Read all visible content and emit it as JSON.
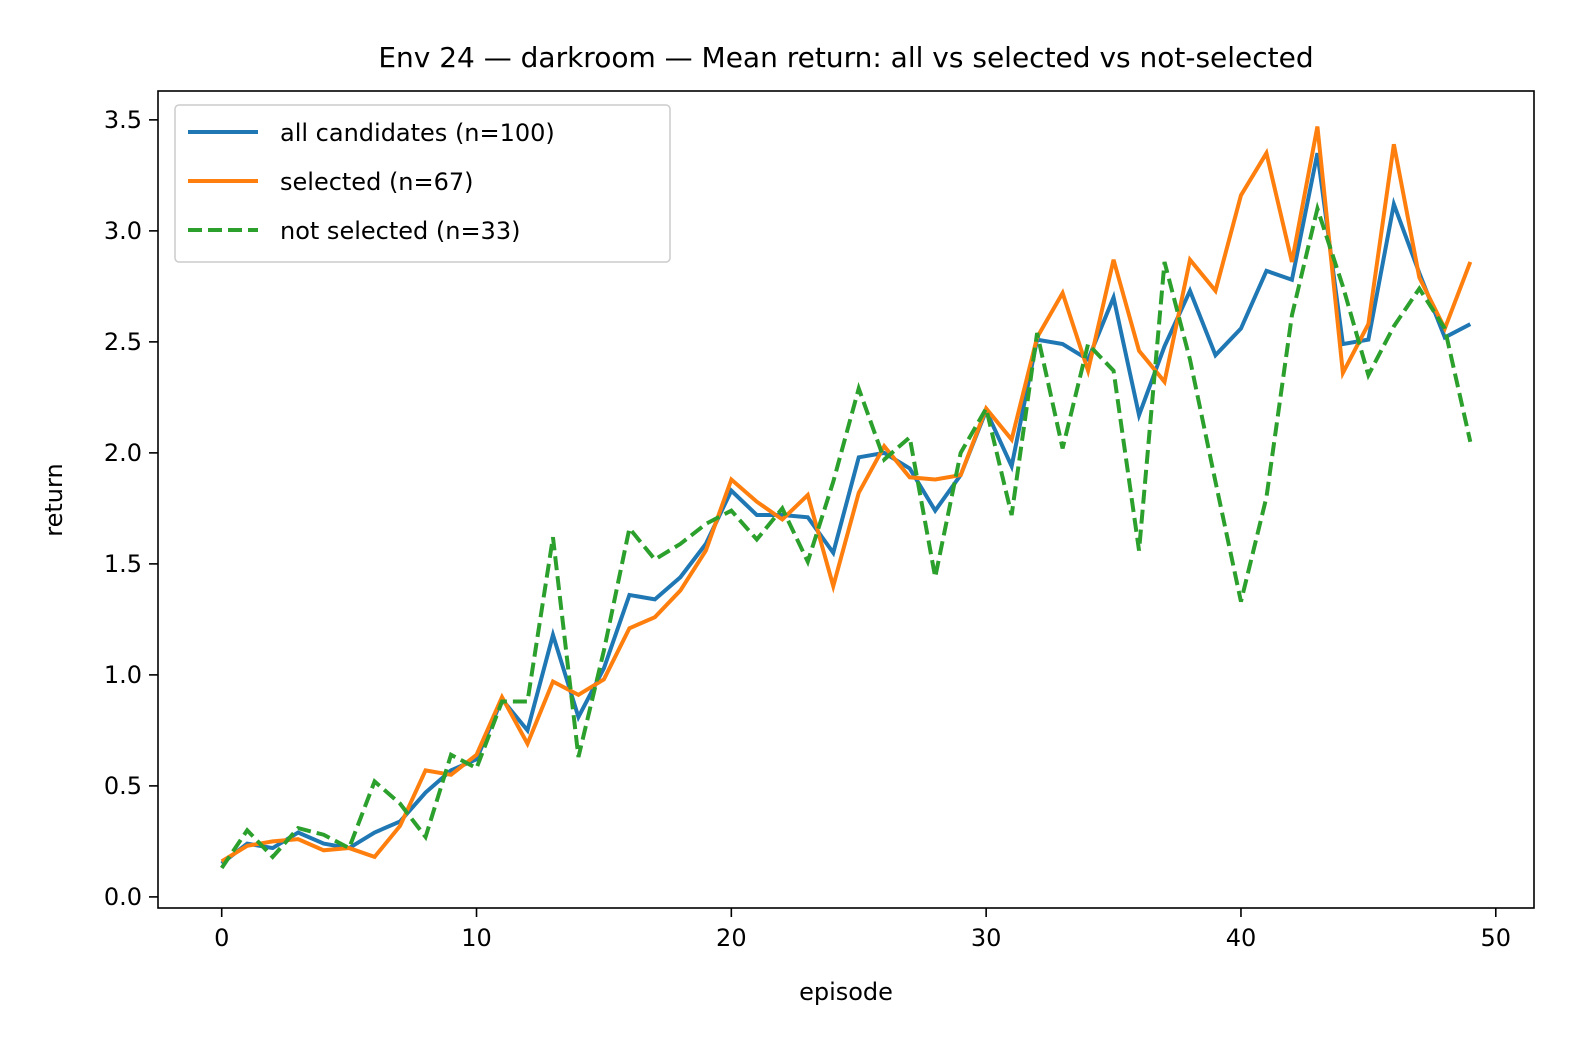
{
  "chart_data": {
    "type": "line",
    "title": "Env 24 — darkroom — Mean return: all vs selected vs not-selected",
    "xlabel": "episode",
    "ylabel": "return",
    "xlim": [
      -2.5,
      51.5
    ],
    "ylim": [
      -0.05,
      3.63
    ],
    "xticks": [
      0,
      10,
      20,
      30,
      40,
      50
    ],
    "xtick_labels": [
      "0",
      "10",
      "20",
      "30",
      "40",
      "50"
    ],
    "yticks": [
      0.0,
      0.5,
      1.0,
      1.5,
      2.0,
      2.5,
      3.0,
      3.5
    ],
    "ytick_labels": [
      "0.0",
      "0.5",
      "1.0",
      "1.5",
      "2.0",
      "2.5",
      "3.0",
      "3.5"
    ],
    "grid": false,
    "legend_position": "top-left",
    "x": [
      0,
      1,
      2,
      3,
      4,
      5,
      6,
      7,
      8,
      9,
      10,
      11,
      12,
      13,
      14,
      15,
      16,
      17,
      18,
      19,
      20,
      21,
      22,
      23,
      24,
      25,
      26,
      27,
      28,
      29,
      30,
      31,
      32,
      33,
      34,
      35,
      36,
      37,
      38,
      39,
      40,
      41,
      42,
      43,
      44,
      45,
      46,
      47,
      48,
      49
    ],
    "series": [
      {
        "name": "all candidates (n=100)",
        "color": "#1f77b4",
        "dash": "solid",
        "values": [
          0.15,
          0.24,
          0.22,
          0.29,
          0.24,
          0.22,
          0.29,
          0.34,
          0.47,
          0.57,
          0.62,
          0.89,
          0.75,
          1.18,
          0.81,
          1.03,
          1.36,
          1.34,
          1.44,
          1.59,
          1.83,
          1.72,
          1.72,
          1.71,
          1.55,
          1.98,
          2.0,
          1.93,
          1.74,
          1.9,
          2.19,
          1.94,
          2.51,
          2.49,
          2.42,
          2.7,
          2.17,
          2.48,
          2.73,
          2.44,
          2.56,
          2.82,
          2.78,
          3.35,
          2.49,
          2.51,
          3.12,
          2.81,
          2.52,
          2.58
        ]
      },
      {
        "name": "selected (n=67)",
        "color": "#ff7f0e",
        "dash": "solid",
        "values": [
          0.16,
          0.23,
          0.25,
          0.26,
          0.21,
          0.22,
          0.18,
          0.32,
          0.57,
          0.55,
          0.64,
          0.9,
          0.69,
          0.97,
          0.91,
          0.98,
          1.21,
          1.26,
          1.38,
          1.56,
          1.88,
          1.78,
          1.7,
          1.81,
          1.4,
          1.82,
          2.03,
          1.89,
          1.88,
          1.9,
          2.2,
          2.06,
          2.52,
          2.72,
          2.37,
          2.87,
          2.46,
          2.32,
          2.87,
          2.73,
          3.16,
          3.35,
          2.86,
          3.47,
          2.36,
          2.58,
          3.39,
          2.79,
          2.56,
          2.86
        ]
      },
      {
        "name": "not selected (n=33)",
        "color": "#2ca02c",
        "dash": "dashed",
        "values": [
          0.13,
          0.3,
          0.18,
          0.31,
          0.28,
          0.22,
          0.52,
          0.42,
          0.27,
          0.64,
          0.58,
          0.88,
          0.88,
          1.62,
          0.63,
          1.11,
          1.66,
          1.52,
          1.59,
          1.68,
          1.74,
          1.61,
          1.75,
          1.51,
          1.87,
          2.29,
          1.97,
          2.07,
          1.44,
          2.0,
          2.2,
          1.72,
          2.54,
          2.02,
          2.49,
          2.37,
          1.56,
          2.86,
          2.42,
          1.87,
          1.33,
          1.8,
          2.62,
          3.1,
          2.75,
          2.35,
          2.57,
          2.74,
          2.56,
          2.05
        ]
      }
    ]
  }
}
